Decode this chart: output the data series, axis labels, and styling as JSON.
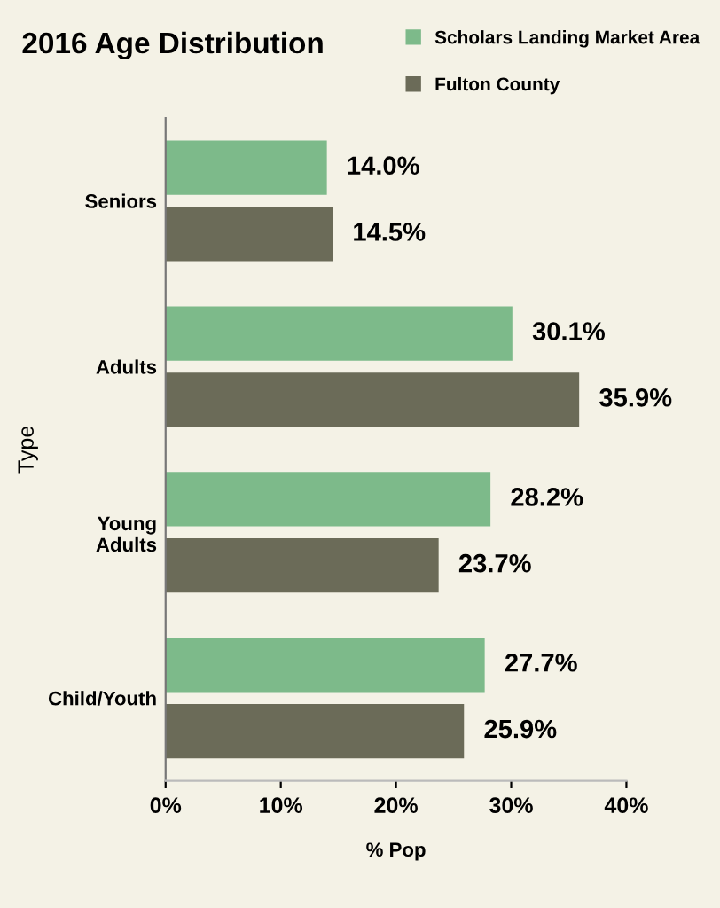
{
  "chart_data": {
    "type": "bar",
    "orientation": "horizontal",
    "title": "2016 Age Distribution",
    "xlabel": "% Pop",
    "ylabel": "Type",
    "categories": [
      "Seniors",
      "Adults",
      "Young\nAdults",
      "Child/Youth"
    ],
    "series": [
      {
        "name": "Scholars Landing Market Area",
        "color": "#7dba8a",
        "values": [
          14.0,
          30.1,
          28.2,
          27.7
        ],
        "value_labels": [
          "14.0%",
          "30.1%",
          "28.2%",
          "27.7%"
        ]
      },
      {
        "name": "Fulton County",
        "color": "#6b6b58",
        "values": [
          14.5,
          35.9,
          23.7,
          25.9
        ],
        "value_labels": [
          "14.5%",
          "35.9%",
          "23.7%",
          "25.9%"
        ]
      }
    ],
    "xlim": [
      0,
      40
    ],
    "xticks": [
      {
        "value": 0,
        "label": "0%"
      },
      {
        "value": 10,
        "label": "10%"
      },
      {
        "value": 20,
        "label": "20%"
      },
      {
        "value": 30,
        "label": "30%"
      },
      {
        "value": 40,
        "label": "40%"
      }
    ],
    "legend": "top right",
    "grid": false
  }
}
